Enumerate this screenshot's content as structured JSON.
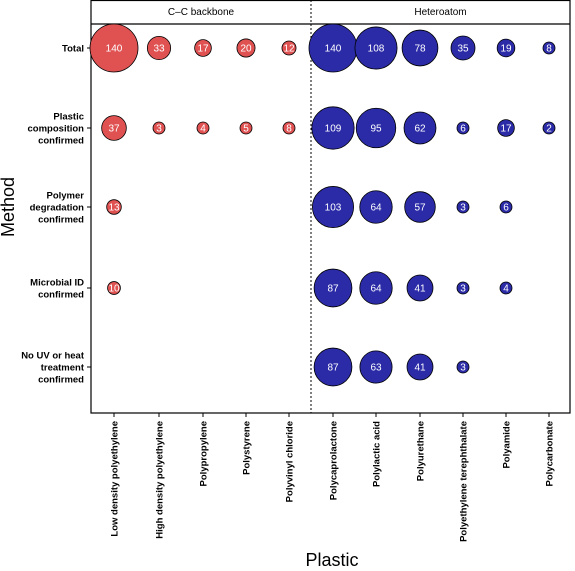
{
  "chart_data": {
    "type": "bubble",
    "xlabel": "Plastic",
    "ylabel": "Method",
    "groups": [
      {
        "name": "C–C backbone",
        "color": "#e05252",
        "columns": [
          "Low density polyethylene",
          "High density polyethylene",
          "Polypropylene",
          "Polystyrene",
          "Polyvinyl chloride"
        ]
      },
      {
        "name": "Heteroatom",
        "color": "#2b2ba8",
        "columns": [
          "Polycaprolactone",
          "Polylactic acid",
          "Polyurethane",
          "Polyethylene terephthalate",
          "Polyamide",
          "Polycarbonate"
        ]
      }
    ],
    "rows": [
      "Total",
      "Plastic composition confirmed",
      "Polymer degradation confirmed",
      "Microbial ID confirmed",
      "No UV or heat treatment confirmed"
    ],
    "values": [
      [
        140,
        33,
        17,
        20,
        12,
        140,
        108,
        78,
        35,
        19,
        8
      ],
      [
        37,
        3,
        4,
        5,
        8,
        109,
        95,
        62,
        6,
        17,
        2
      ],
      [
        13,
        null,
        null,
        null,
        null,
        103,
        64,
        57,
        3,
        6,
        null
      ],
      [
        10,
        null,
        null,
        null,
        null,
        87,
        64,
        41,
        3,
        4,
        null
      ],
      [
        null,
        null,
        null,
        null,
        null,
        87,
        63,
        41,
        3,
        null,
        null
      ]
    ]
  }
}
